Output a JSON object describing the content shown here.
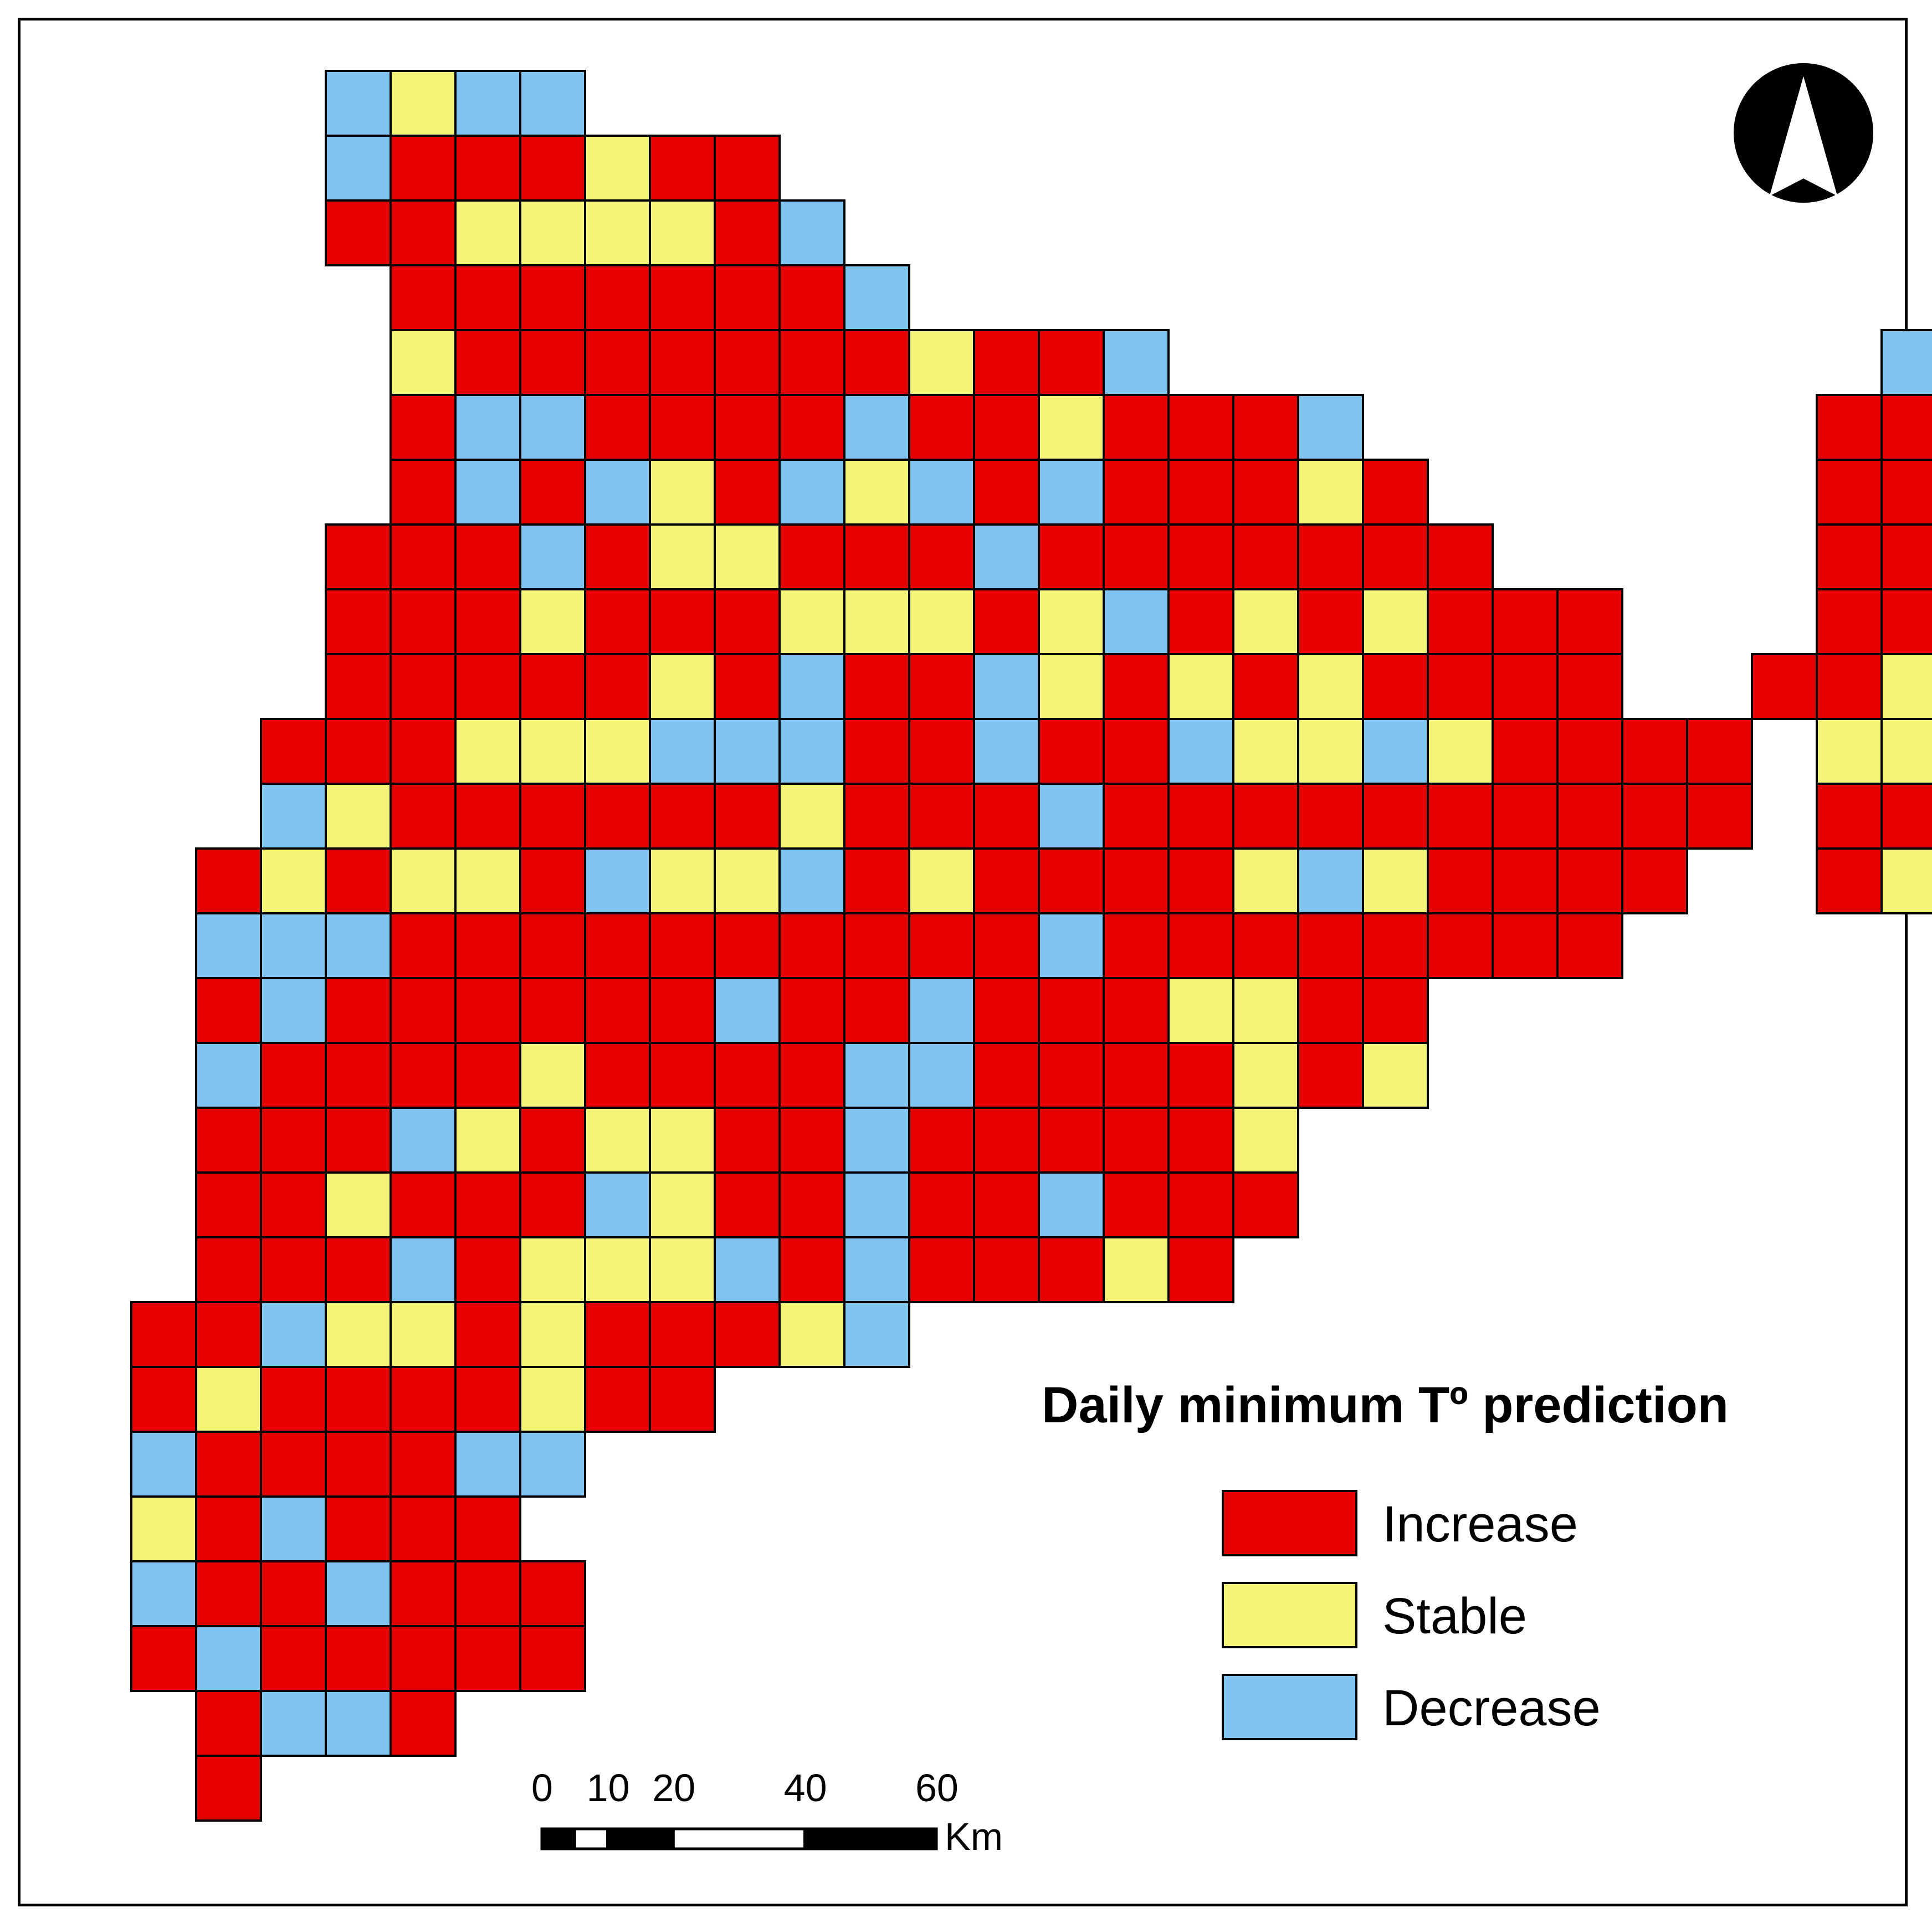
{
  "legend": {
    "title": "Daily minimum Tº prediction",
    "items": [
      {
        "label": "Increase",
        "color": "#e60000"
      },
      {
        "label": "Stable",
        "color": "#f5f57a"
      },
      {
        "label": "Decrease",
        "color": "#80c4f2"
      }
    ]
  },
  "scale_bar": {
    "ticks": [
      "0",
      "10",
      "20",
      "40",
      "60"
    ],
    "tick_values": [
      0,
      10,
      20,
      40,
      60
    ],
    "unit": "Km"
  },
  "north_arrow": {
    "icon": "north-arrow-icon"
  },
  "grid": {
    "codes": {
      "R": "Increase",
      "Y": "Stable",
      "B": "Decrease"
    },
    "rows": [
      "    BYBB                        ",
      "    BRRRYRR                     ",
      "    RRYYYYRB                    ",
      "     RRRRRRRB                   ",
      "     YRRRRRRRYRRB           BRY ",
      "     RBBRRRRBRRYRRRB       RRBRB",
      "     RBRBYRBYBRBRRRYR      RRYBYY",
      "    RRRBRYYRRRBRRRRRRR     RRYBRBB",
      "    RRRYRRRYYYRYBRYRYRRR   RRRRR ",
      "    RRRRRYRBRRBYRYRYRRRR  RRYRR  ",
      "   RRRYYYBBBRRBRRBYYBYRRRR YYR  ",
      "   BYRRRRRRYRRRBRRRRRRRRRR RRY  ",
      "  RYRYYRBYYBRYRRRRYBYRRRR  RY   ",
      "  BBBRRRRRRRRRRBRRRRRRRR        ",
      "  RBRRRRRRBRRBRRRYYRR           ",
      "  BRRRRYRRRRBBRRRRYRY           ",
      "  RRRBYRYYRRBRRRRRY             ",
      "  RRYRRRBYRRBRRBRRR             ",
      "  RRRBRYYYBRBRRRYR              ",
      " RRBYYRYRRRYB                   ",
      " RYRRRRYRR                      ",
      " BRRRRBB                        ",
      " YRBRRR                         ",
      " BRRBRRR                        ",
      " RBRRRRR                        ",
      "  RBBR                          ",
      "  R                             "
    ],
    "row_offsets": [
      0,
      0,
      0,
      0,
      0,
      0,
      0,
      0,
      0,
      0,
      0,
      0,
      0,
      0,
      0,
      0,
      0,
      0,
      0,
      0,
      0,
      0,
      0,
      0,
      0,
      0,
      0
    ]
  }
}
